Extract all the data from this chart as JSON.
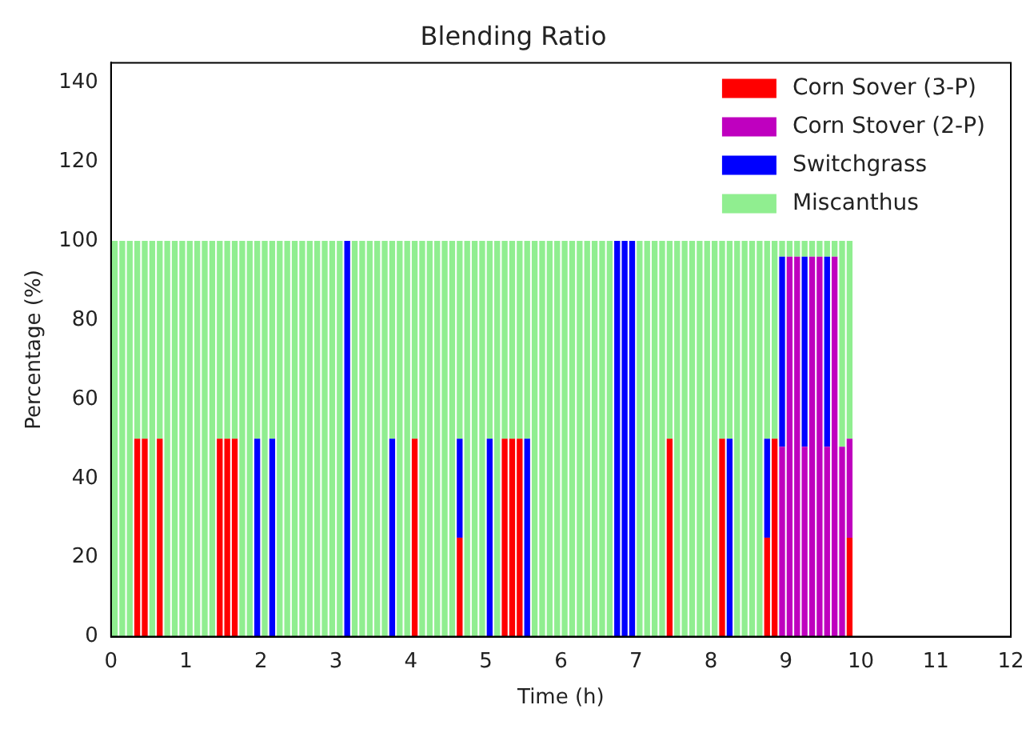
{
  "chart_data": {
    "type": "bar",
    "title": "Blending Ratio",
    "xlabel": "Time (h)",
    "ylabel": "Percentage (%)",
    "stacked": true,
    "x": [
      0.05,
      0.15,
      0.25,
      0.35,
      0.45,
      0.55,
      0.65,
      0.75,
      0.85,
      0.95,
      1.05,
      1.15,
      1.25,
      1.35,
      1.45,
      1.55,
      1.65,
      1.75,
      1.85,
      1.95,
      2.05,
      2.15,
      2.25,
      2.35,
      2.45,
      2.55,
      2.65,
      2.75,
      2.85,
      2.95,
      3.05,
      3.15,
      3.25,
      3.35,
      3.45,
      3.55,
      3.65,
      3.75,
      3.85,
      3.95,
      4.05,
      4.15,
      4.25,
      4.35,
      4.45,
      4.55,
      4.65,
      4.75,
      4.85,
      4.95,
      5.05,
      5.15,
      5.25,
      5.35,
      5.45,
      5.55,
      5.65,
      5.75,
      5.85,
      5.95,
      6.05,
      6.15,
      6.25,
      6.35,
      6.45,
      6.55,
      6.65,
      6.75,
      6.85,
      6.95,
      7.05,
      7.15,
      7.25,
      7.35,
      7.45,
      7.55,
      7.65,
      7.75,
      7.85,
      7.95,
      8.05,
      8.15,
      8.25,
      8.35,
      8.45,
      8.55,
      8.65,
      8.75,
      8.85,
      8.95,
      9.05,
      9.15,
      9.25,
      9.35,
      9.45,
      9.55,
      9.65,
      9.75,
      9.85
    ],
    "series": [
      {
        "name": "Corn Sover (3-P)",
        "color": "#ff0000",
        "values": [
          0,
          0,
          0,
          50,
          50,
          0,
          50,
          0,
          0,
          0,
          0,
          0,
          0,
          0,
          50,
          50,
          50,
          0,
          0,
          0,
          0,
          0,
          0,
          0,
          0,
          0,
          0,
          0,
          0,
          0,
          0,
          0,
          0,
          0,
          0,
          0,
          0,
          0,
          0,
          0,
          50,
          0,
          0,
          0,
          0,
          0,
          25,
          0,
          0,
          0,
          0,
          0,
          50,
          50,
          50,
          0,
          0,
          0,
          0,
          0,
          0,
          0,
          0,
          0,
          0,
          0,
          0,
          0,
          0,
          0,
          0,
          0,
          0,
          0,
          50,
          0,
          0,
          0,
          0,
          0,
          0,
          50,
          0,
          0,
          0,
          0,
          0,
          25,
          50,
          0,
          0,
          0,
          0,
          0,
          0,
          0,
          0,
          0,
          25
        ]
      },
      {
        "name": "Corn Stover (2-P)",
        "color": "#bf00bf",
        "values": [
          0,
          0,
          0,
          0,
          0,
          0,
          0,
          0,
          0,
          0,
          0,
          0,
          0,
          0,
          0,
          0,
          0,
          0,
          0,
          0,
          0,
          0,
          0,
          0,
          0,
          0,
          0,
          0,
          0,
          0,
          0,
          0,
          0,
          0,
          0,
          0,
          0,
          0,
          0,
          0,
          0,
          0,
          0,
          0,
          0,
          0,
          0,
          0,
          0,
          0,
          0,
          0,
          0,
          0,
          0,
          0,
          0,
          0,
          0,
          0,
          0,
          0,
          0,
          0,
          0,
          0,
          0,
          0,
          0,
          0,
          0,
          0,
          0,
          0,
          0,
          0,
          0,
          0,
          0,
          0,
          0,
          0,
          0,
          0,
          0,
          0,
          0,
          0,
          0,
          48,
          96,
          96,
          48,
          96,
          96,
          48,
          96,
          48,
          25
        ]
      },
      {
        "name": "Switchgrass",
        "color": "#0000ff",
        "values": [
          0,
          0,
          0,
          0,
          0,
          0,
          0,
          0,
          0,
          0,
          0,
          0,
          0,
          0,
          0,
          0,
          0,
          0,
          0,
          50,
          0,
          50,
          0,
          0,
          0,
          0,
          0,
          0,
          0,
          0,
          0,
          100,
          0,
          0,
          0,
          0,
          0,
          50,
          0,
          0,
          0,
          0,
          0,
          0,
          0,
          0,
          25,
          0,
          0,
          0,
          50,
          0,
          0,
          0,
          0,
          50,
          0,
          0,
          0,
          0,
          0,
          0,
          0,
          0,
          0,
          0,
          0,
          100,
          100,
          100,
          0,
          0,
          0,
          0,
          0,
          0,
          0,
          0,
          0,
          0,
          0,
          0,
          50,
          0,
          0,
          0,
          0,
          25,
          0,
          48,
          0,
          0,
          48,
          0,
          0,
          48,
          0,
          0,
          0
        ]
      },
      {
        "name": "Miscanthus",
        "color": "#90ee90",
        "values": [
          100,
          100,
          100,
          50,
          50,
          100,
          50,
          100,
          100,
          100,
          100,
          100,
          100,
          100,
          50,
          50,
          50,
          100,
          100,
          50,
          100,
          50,
          100,
          100,
          100,
          100,
          100,
          100,
          100,
          100,
          100,
          0,
          100,
          100,
          100,
          100,
          100,
          50,
          100,
          100,
          50,
          100,
          100,
          100,
          100,
          100,
          50,
          100,
          100,
          100,
          50,
          100,
          50,
          50,
          50,
          50,
          100,
          100,
          100,
          100,
          100,
          100,
          100,
          100,
          100,
          100,
          100,
          0,
          0,
          0,
          100,
          100,
          100,
          100,
          50,
          100,
          100,
          100,
          100,
          100,
          100,
          50,
          50,
          100,
          100,
          100,
          100,
          50,
          50,
          4,
          4,
          4,
          4,
          4,
          4,
          4,
          4,
          52,
          50
        ]
      }
    ],
    "xlim": [
      0,
      12
    ],
    "xticks": [
      0,
      1,
      2,
      3,
      4,
      5,
      6,
      7,
      8,
      9,
      10,
      11,
      12
    ],
    "ylim": [
      0,
      145
    ],
    "yticks": [
      0,
      20,
      40,
      60,
      80,
      100,
      120,
      140
    ],
    "legend": "top right"
  }
}
